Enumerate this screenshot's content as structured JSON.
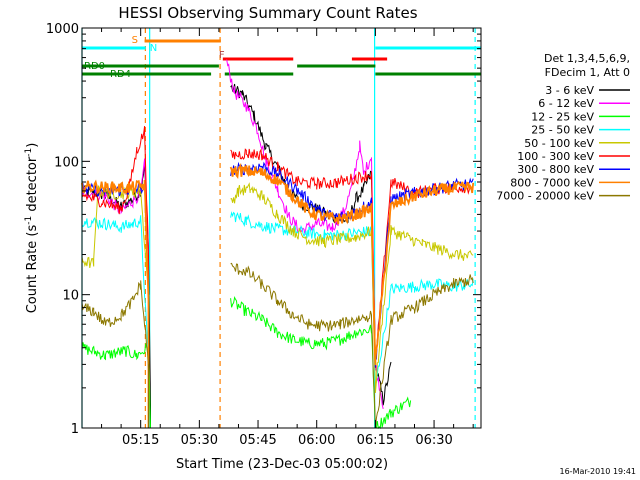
{
  "footer_date": "16-Mar-2010 19:41",
  "chart_data": {
    "type": "line",
    "title": "HESSI Observing Summary Count Rates",
    "xlabel": "Start Time (23-Dec-03 05:00:02)",
    "ylabel_main": "Count Rate (s",
    "ylabel_sup1": "-1",
    "ylabel_mid": " detector",
    "ylabel_sup2": "-1",
    "ylabel_end": ")",
    "y_scale": "log",
    "ylim": [
      1,
      1000
    ],
    "xlim_minutes": [
      0,
      102
    ],
    "x_ticks": [
      {
        "minute": 15,
        "label": "05:15"
      },
      {
        "minute": 30,
        "label": "05:30"
      },
      {
        "minute": 45,
        "label": "05:45"
      },
      {
        "minute": 60,
        "label": "06:00"
      },
      {
        "minute": 75,
        "label": "06:15"
      },
      {
        "minute": 90,
        "label": "06:30"
      }
    ],
    "y_ticks": [
      {
        "value": 1,
        "label": "1"
      },
      {
        "value": 10,
        "label": "10"
      },
      {
        "value": 100,
        "label": "100"
      },
      {
        "value": 1000,
        "label": "1000"
      }
    ],
    "legend_header": [
      "Det 1,3,4,5,6,9,",
      "FDecim 1, Att 0"
    ],
    "legend_position": "right",
    "series": [
      {
        "name": "3 - 6 keV",
        "color": "#000000",
        "points": [
          [
            0,
            60
          ],
          [
            6,
            56
          ],
          [
            10,
            46
          ],
          [
            13,
            52
          ],
          [
            15,
            60
          ],
          [
            16,
            95
          ],
          [
            17,
            20
          ],
          [
            17.5,
            1.5
          ],
          [
            38,
            360
          ],
          [
            41,
            320
          ],
          [
            44,
            220
          ],
          [
            47,
            130
          ],
          [
            50,
            90
          ],
          [
            53,
            60
          ],
          [
            56,
            48
          ],
          [
            60,
            44
          ],
          [
            64,
            38
          ],
          [
            68,
            36
          ],
          [
            70,
            52
          ],
          [
            72,
            62
          ],
          [
            74,
            82
          ],
          [
            75,
            3
          ],
          [
            77,
            1.6
          ],
          [
            79,
            3
          ]
        ]
      },
      {
        "name": "6 - 12 keV",
        "color": "#ff00ff",
        "points": [
          [
            0,
            60
          ],
          [
            6,
            55
          ],
          [
            10,
            42
          ],
          [
            13,
            50
          ],
          [
            15,
            58
          ],
          [
            16,
            95
          ],
          [
            17,
            22
          ],
          [
            37,
            560
          ],
          [
            39,
            330
          ],
          [
            42,
            260
          ],
          [
            45,
            170
          ],
          [
            47,
            100
          ],
          [
            50,
            62
          ],
          [
            53,
            38
          ],
          [
            56,
            30
          ],
          [
            60,
            34
          ],
          [
            64,
            32
          ],
          [
            67,
            42
          ],
          [
            69,
            65
          ],
          [
            71,
            130
          ],
          [
            72,
            80
          ],
          [
            74,
            110
          ],
          [
            75,
            3
          ],
          [
            77,
            1.5
          ]
        ]
      },
      {
        "name": "12 - 25 keV",
        "color": "#00ff00",
        "points": [
          [
            0,
            4
          ],
          [
            6,
            3.5
          ],
          [
            11,
            3.8
          ],
          [
            14,
            3.5
          ],
          [
            17,
            4
          ],
          [
            17.5,
            1
          ],
          [
            38,
            9
          ],
          [
            42,
            7.5
          ],
          [
            46,
            6.5
          ],
          [
            50,
            5.2
          ],
          [
            54,
            4.6
          ],
          [
            58,
            4.3
          ],
          [
            62,
            4.3
          ],
          [
            66,
            4.6
          ],
          [
            70,
            5.2
          ],
          [
            74,
            5.5
          ],
          [
            75,
            1
          ],
          [
            79,
            1.3
          ],
          [
            84,
            1.6
          ]
        ]
      },
      {
        "name": "25 - 50 keV",
        "color": "#00ffff",
        "points": [
          [
            0,
            36
          ],
          [
            6,
            34
          ],
          [
            10,
            32
          ],
          [
            13,
            34
          ],
          [
            15,
            36
          ],
          [
            17,
            3
          ],
          [
            38,
            40
          ],
          [
            42,
            36
          ],
          [
            46,
            33
          ],
          [
            50,
            31
          ],
          [
            54,
            30
          ],
          [
            58,
            29
          ],
          [
            62,
            28
          ],
          [
            66,
            28
          ],
          [
            70,
            29
          ],
          [
            74,
            30
          ],
          [
            75,
            2
          ],
          [
            79,
            11
          ],
          [
            85,
            11.5
          ],
          [
            90,
            12
          ],
          [
            95,
            11.5
          ],
          [
            100,
            12
          ]
        ]
      },
      {
        "name": "50 - 100 keV",
        "color": "#c8c800",
        "points": [
          [
            0,
            18
          ],
          [
            3,
            17
          ],
          [
            4,
            60
          ],
          [
            8,
            57
          ],
          [
            12,
            58
          ],
          [
            15,
            60
          ],
          [
            17,
            10
          ],
          [
            38,
            48
          ],
          [
            40,
            60
          ],
          [
            43,
            62
          ],
          [
            46,
            55
          ],
          [
            50,
            40
          ],
          [
            54,
            30
          ],
          [
            58,
            26
          ],
          [
            62,
            25
          ],
          [
            66,
            26
          ],
          [
            70,
            27
          ],
          [
            74,
            30
          ],
          [
            75,
            2
          ],
          [
            79,
            30
          ],
          [
            83,
            27
          ],
          [
            87,
            24
          ],
          [
            91,
            22
          ],
          [
            96,
            20
          ],
          [
            100,
            19
          ]
        ]
      },
      {
        "name": "100 - 300 keV",
        "color": "#ff0000",
        "points": [
          [
            0,
            56
          ],
          [
            5,
            50
          ],
          [
            10,
            44
          ],
          [
            12,
            62
          ],
          [
            14,
            120
          ],
          [
            16,
            170
          ],
          [
            17,
            20
          ],
          [
            38,
            110
          ],
          [
            42,
            115
          ],
          [
            46,
            112
          ],
          [
            50,
            90
          ],
          [
            55,
            70
          ],
          [
            60,
            68
          ],
          [
            65,
            69
          ],
          [
            70,
            75
          ],
          [
            74,
            80
          ],
          [
            75,
            3
          ],
          [
            79,
            70
          ],
          [
            85,
            58
          ],
          [
            90,
            62
          ],
          [
            95,
            64
          ],
          [
            100,
            64
          ]
        ]
      },
      {
        "name": "300 - 800 keV",
        "color": "#0000ff",
        "points": [
          [
            0,
            62
          ],
          [
            6,
            60
          ],
          [
            12,
            61
          ],
          [
            16,
            64
          ],
          [
            17,
            10
          ],
          [
            38,
            86
          ],
          [
            42,
            88
          ],
          [
            46,
            92
          ],
          [
            50,
            80
          ],
          [
            54,
            65
          ],
          [
            58,
            50
          ],
          [
            62,
            40
          ],
          [
            66,
            38
          ],
          [
            70,
            42
          ],
          [
            74,
            50
          ],
          [
            75,
            3
          ],
          [
            79,
            52
          ],
          [
            85,
            58
          ],
          [
            90,
            62
          ],
          [
            95,
            66
          ],
          [
            100,
            67
          ]
        ]
      },
      {
        "name": "800 - 7000 keV",
        "color": "#ff8000",
        "points": [
          [
            0,
            65
          ],
          [
            6,
            64
          ],
          [
            12,
            63
          ],
          [
            16,
            66
          ],
          [
            17,
            10
          ],
          [
            38,
            84
          ],
          [
            42,
            85
          ],
          [
            46,
            82
          ],
          [
            50,
            72
          ],
          [
            54,
            55
          ],
          [
            58,
            42
          ],
          [
            62,
            38
          ],
          [
            66,
            37
          ],
          [
            70,
            40
          ],
          [
            74,
            44
          ],
          [
            75,
            3
          ],
          [
            79,
            46
          ],
          [
            85,
            55
          ],
          [
            90,
            60
          ],
          [
            95,
            63
          ],
          [
            100,
            64
          ]
        ]
      },
      {
        "name": "7000 - 20000 keV",
        "color": "#8c7800",
        "points": [
          [
            0,
            8
          ],
          [
            3,
            7.5
          ],
          [
            6,
            6
          ],
          [
            10,
            7
          ],
          [
            13,
            9
          ],
          [
            15,
            12
          ],
          [
            17,
            3
          ],
          [
            38,
            16
          ],
          [
            42,
            15
          ],
          [
            46,
            12
          ],
          [
            50,
            9
          ],
          [
            54,
            7
          ],
          [
            58,
            6
          ],
          [
            62,
            5.8
          ],
          [
            66,
            6
          ],
          [
            70,
            6.5
          ],
          [
            74,
            7
          ],
          [
            75,
            1
          ],
          [
            79,
            6.5
          ],
          [
            85,
            8
          ],
          [
            90,
            10
          ],
          [
            95,
            12
          ],
          [
            100,
            13
          ]
        ]
      }
    ],
    "events": {
      "cyan_vertical_solid": [
        0,
        17.3,
        74.8
      ],
      "cyan_vertical_dashed": [
        100.5
      ],
      "orange_vertical_dashed": [
        16.2,
        35.3
      ],
      "saa": {
        "label": "S",
        "start": 16,
        "end": 35.5,
        "color": "#ff8000"
      },
      "night": {
        "label": "N",
        "segments": [
          [
            0,
            16.3
          ],
          [
            75,
            102
          ]
        ],
        "color": "#00ffff"
      },
      "flare": {
        "label": "F",
        "segments": [
          [
            36,
            54
          ],
          [
            69,
            78
          ]
        ],
        "color": "#ff0000"
      },
      "rd0": {
        "label": "RD0",
        "segments": [
          [
            0,
            35
          ],
          [
            55,
            75
          ]
        ],
        "color": "#008000"
      },
      "rd4": {
        "label": "RD4",
        "segments": [
          [
            0,
            33
          ],
          [
            36.5,
            54
          ],
          [
            75,
            102
          ]
        ],
        "color": "#008000"
      }
    }
  }
}
